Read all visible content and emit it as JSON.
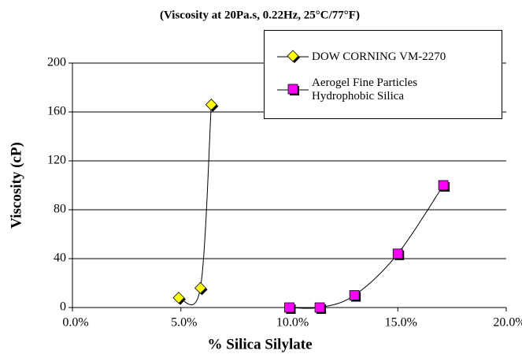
{
  "chart_data": {
    "type": "scatter",
    "title": "(Viscosity at 20Pa.s, 0.22Hz, 25°C/77°F)",
    "x_label": "% Silica Silylate",
    "y_label": "Viscosity (cP)",
    "xlim": [
      0,
      20
    ],
    "xticks": [
      {
        "value": 0,
        "label": "0.0%"
      },
      {
        "value": 5,
        "label": "5.0%"
      },
      {
        "value": 10,
        "label": "10.0%"
      },
      {
        "value": 15,
        "label": "15.0%"
      },
      {
        "value": 20,
        "label": "20.0%"
      }
    ],
    "ylim": [
      0,
      200
    ],
    "yticks": [
      0,
      40,
      80,
      120,
      160,
      200
    ],
    "grid": true,
    "legend": "upper right",
    "series": [
      {
        "name": "DOW CORNING VM-2270",
        "color": "#ffff00",
        "marker": "diamond",
        "x": [
          4.9,
          5.9,
          6.4
        ],
        "values": [
          8,
          16,
          166
        ]
      },
      {
        "name": "Aerogel Fine Particles Hydrophobic Silica",
        "color": "#ff00ff",
        "marker": "square",
        "x": [
          10,
          11.4,
          13,
          15,
          17.1
        ],
        "values": [
          0,
          0,
          10,
          44,
          100
        ]
      }
    ]
  }
}
